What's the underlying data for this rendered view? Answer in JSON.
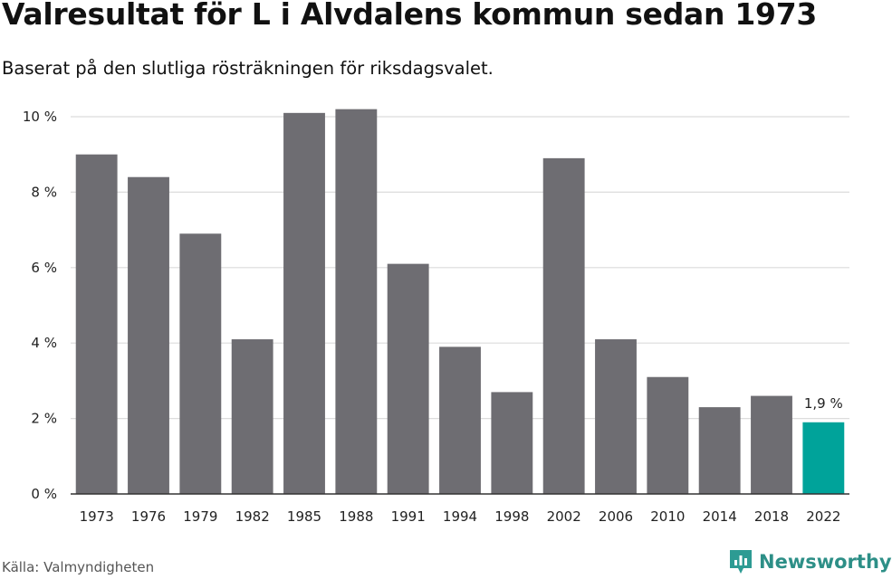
{
  "title": "Valresultat för L i Älvdalens kommun sedan 1973",
  "subtitle": "Baserat på den slutliga rösträkningen för riksdagsvalet.",
  "source": "Källa: Valmyndigheten",
  "brand": {
    "name": "Newsworthy",
    "color": "#2d9b93",
    "icon": "newsworthy-logo-icon"
  },
  "chart_data": {
    "type": "bar",
    "categories": [
      "1973",
      "1976",
      "1979",
      "1982",
      "1985",
      "1988",
      "1991",
      "1994",
      "1998",
      "2002",
      "2006",
      "2010",
      "2014",
      "2018",
      "2022"
    ],
    "values": [
      9.0,
      8.4,
      6.9,
      4.1,
      10.1,
      10.2,
      6.1,
      3.9,
      2.7,
      8.9,
      4.1,
      3.1,
      2.3,
      2.6,
      1.9
    ],
    "ylim": [
      0,
      10
    ],
    "yticks": [
      0,
      2,
      4,
      6,
      8,
      10
    ],
    "ytick_labels": [
      "0 %",
      "2 %",
      "4 %",
      "6 %",
      "8 %",
      "10 %"
    ],
    "bar_color": "#6e6d72",
    "highlight_color": "#00a39a",
    "highlight_index": 14,
    "data_labels": [
      {
        "index": 14,
        "text": "1,9 %"
      }
    ],
    "grid": true
  }
}
